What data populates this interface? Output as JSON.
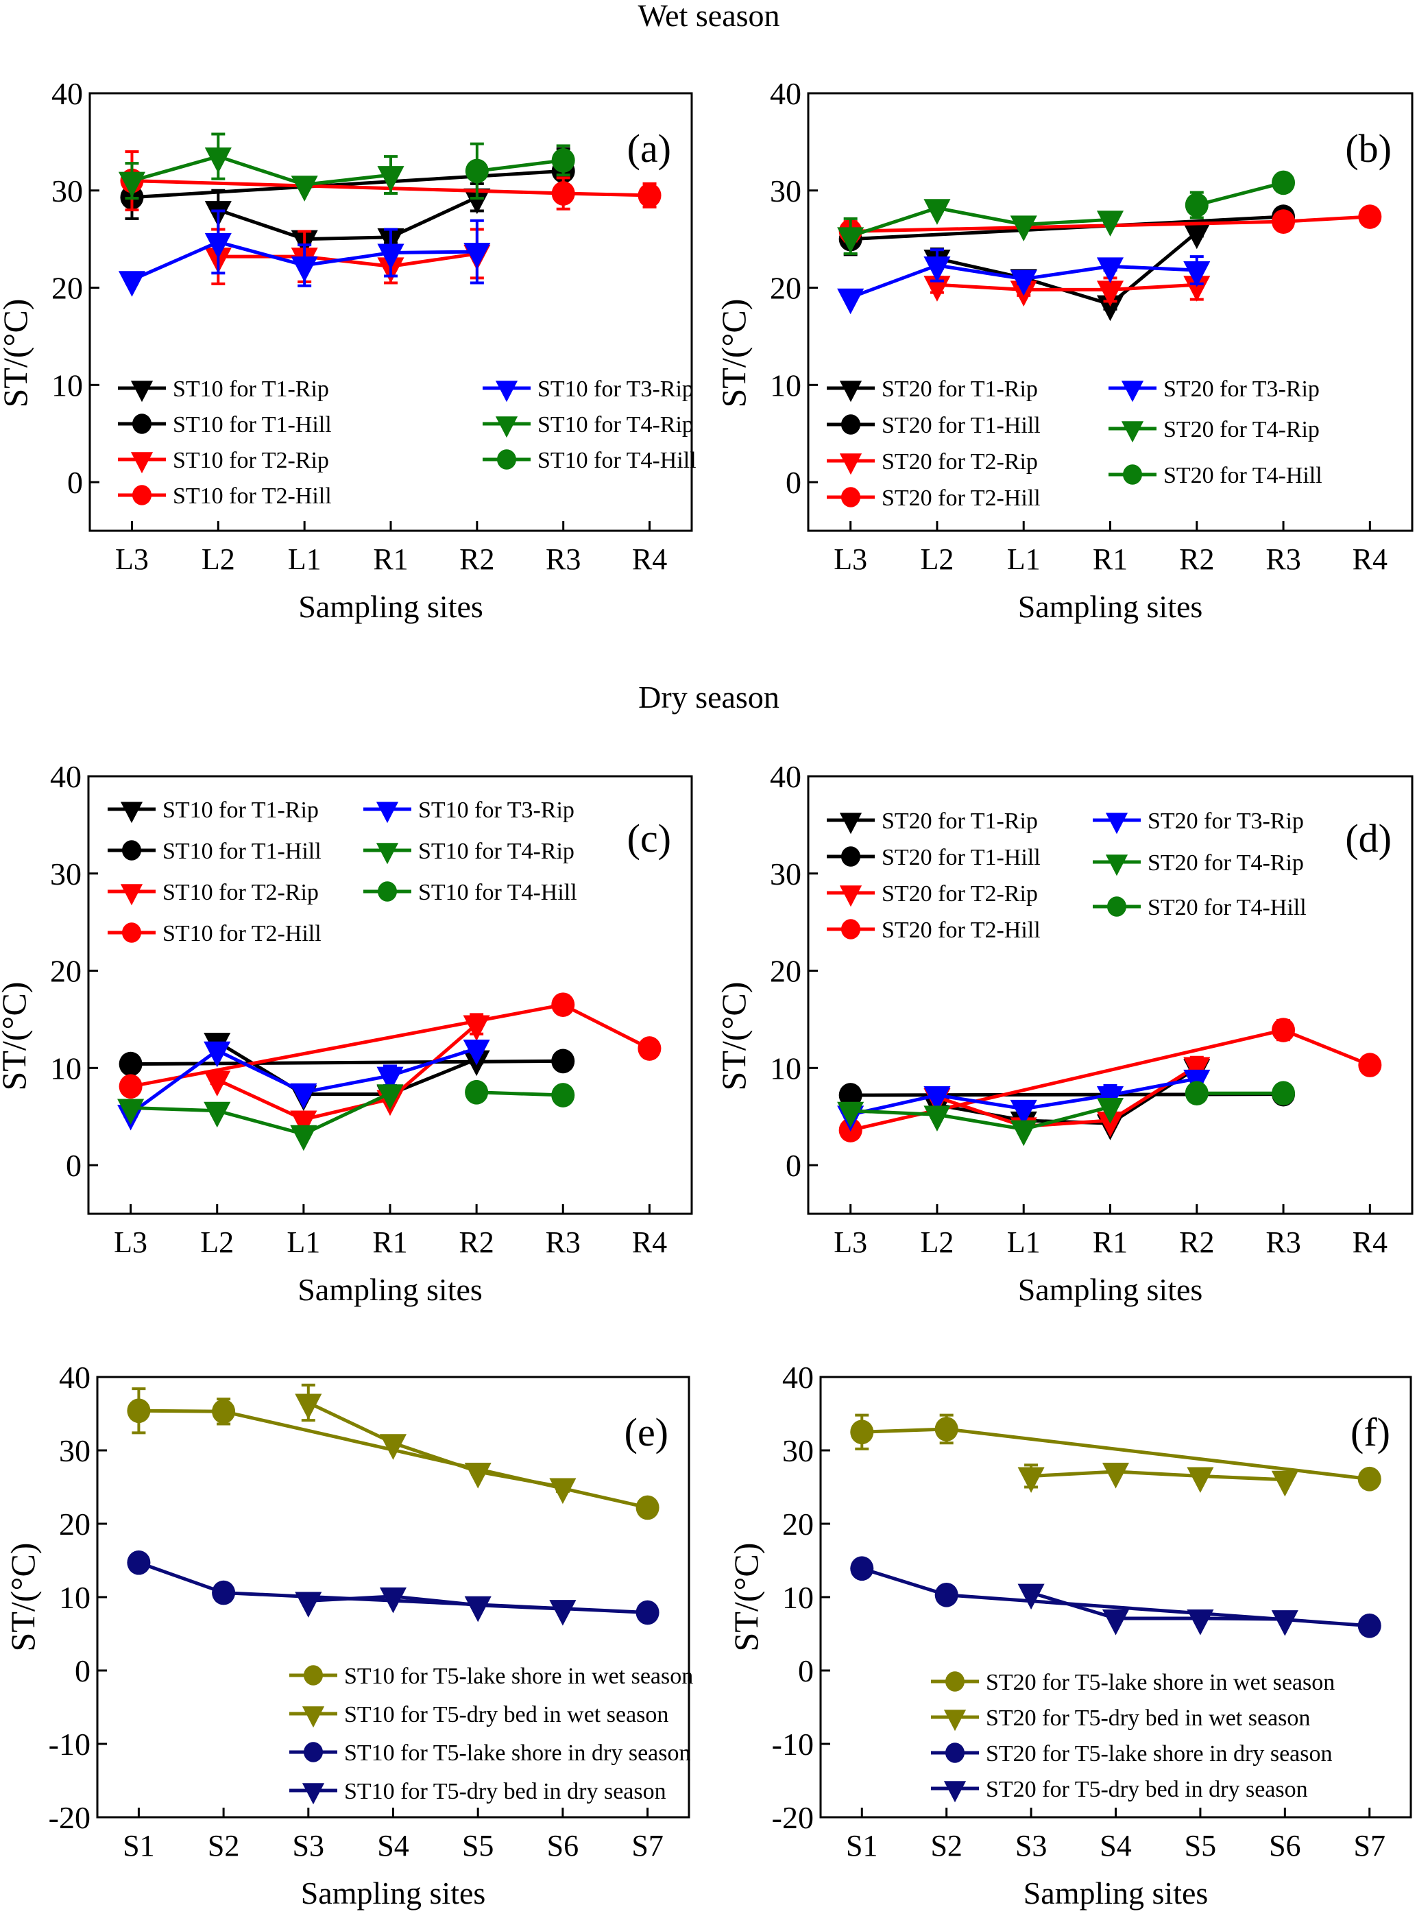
{
  "figure": {
    "section_titles": [
      "Wet season",
      "Dry season"
    ]
  },
  "colors": {
    "black": "#000000",
    "red": "#ff0000",
    "blue": "#0000ff",
    "green": "#0a7d0a",
    "olive": "#808000",
    "navy": "#0a0a78"
  },
  "chart_data": [
    {
      "id": "a",
      "type": "line",
      "panel_label": "(a)",
      "title": "",
      "xlabel": "Sampling sites",
      "ylabel": "ST/(°C)",
      "categories": [
        "L3",
        "L2",
        "L1",
        "R1",
        "R2",
        "R3",
        "R4"
      ],
      "ylim": [
        -5,
        40
      ],
      "yticks": [
        0,
        10,
        20,
        30,
        40
      ],
      "legend_position": "bottom-left",
      "legend_columns": 2,
      "series": [
        {
          "name": "ST10 for T1-Rip",
          "color": "black",
          "marker": "triangle-down",
          "values": [
            null,
            28.0,
            25.0,
            25.2,
            29.3,
            null,
            null
          ],
          "errors": [
            null,
            2.0,
            0.4,
            0.6,
            1.4,
            null,
            null
          ]
        },
        {
          "name": "ST10 for T1-Hill",
          "color": "black",
          "marker": "circle",
          "values": [
            29.3,
            null,
            null,
            null,
            null,
            32.0,
            null
          ],
          "errors": [
            2.2,
            null,
            null,
            null,
            null,
            2.3,
            null
          ]
        },
        {
          "name": "ST10 for T2-Rip",
          "color": "red",
          "marker": "triangle-down",
          "values": [
            null,
            23.2,
            23.2,
            22.2,
            23.5,
            null,
            null
          ],
          "errors": [
            null,
            2.8,
            2.6,
            1.7,
            2.5,
            null,
            null
          ]
        },
        {
          "name": "ST10 for T2-Hill",
          "color": "red",
          "marker": "circle",
          "values": [
            31.0,
            null,
            null,
            null,
            null,
            29.7,
            29.5
          ],
          "errors": [
            3.0,
            null,
            null,
            null,
            null,
            1.6,
            1.2
          ]
        },
        {
          "name": "ST10 for T3-Rip",
          "color": "blue",
          "marker": "triangle-down",
          "values": [
            20.8,
            24.7,
            22.3,
            23.6,
            23.7,
            null,
            null
          ],
          "errors": [
            0.3,
            3.2,
            2.1,
            2.4,
            3.2,
            null,
            null
          ]
        },
        {
          "name": "ST10 for T4-Rip",
          "color": "green",
          "marker": "triangle-down",
          "values": [
            31.0,
            33.5,
            30.6,
            31.6,
            null,
            null,
            null
          ],
          "errors": [
            1.8,
            2.3,
            0.3,
            1.9,
            null,
            null,
            null
          ]
        },
        {
          "name": "ST10 for T4-Hill",
          "color": "green",
          "marker": "circle",
          "values": [
            null,
            null,
            null,
            null,
            32.0,
            33.1,
            null
          ],
          "errors": [
            null,
            null,
            null,
            null,
            2.8,
            1.5,
            null
          ]
        }
      ]
    },
    {
      "id": "b",
      "type": "line",
      "panel_label": "(b)",
      "title": "",
      "xlabel": "Sampling sites",
      "ylabel": "ST/(°C)",
      "categories": [
        "L3",
        "L2",
        "L1",
        "R1",
        "R2",
        "R3",
        "R4"
      ],
      "ylim": [
        -5,
        40
      ],
      "yticks": [
        0,
        10,
        20,
        30,
        40
      ],
      "legend_position": "bottom-left",
      "legend_columns": 2,
      "series": [
        {
          "name": "ST20 for T1-Rip",
          "color": "black",
          "marker": "triangle-down",
          "values": [
            null,
            23.0,
            21.0,
            18.3,
            25.7,
            null,
            null
          ],
          "errors": [
            null,
            1.0,
            0.4,
            0.5,
            0.4,
            null,
            null
          ]
        },
        {
          "name": "ST20 for T1-Hill",
          "color": "black",
          "marker": "circle",
          "values": [
            25.0,
            null,
            null,
            null,
            null,
            27.3,
            null
          ],
          "errors": [
            1.6,
            null,
            null,
            null,
            null,
            0.5,
            null
          ]
        },
        {
          "name": "ST20 for T2-Rip",
          "color": "red",
          "marker": "triangle-down",
          "values": [
            null,
            20.3,
            19.8,
            19.8,
            20.3,
            null,
            null
          ],
          "errors": [
            null,
            0.8,
            0.6,
            1.2,
            1.5,
            null,
            null
          ]
        },
        {
          "name": "ST20 for T2-Hill",
          "color": "red",
          "marker": "circle",
          "values": [
            25.8,
            null,
            null,
            null,
            null,
            26.8,
            27.3
          ],
          "errors": [
            1.0,
            null,
            null,
            null,
            null,
            0.4,
            0.3
          ]
        },
        {
          "name": "ST20 for T3-Rip",
          "color": "blue",
          "marker": "triangle-down",
          "values": [
            19.0,
            22.3,
            20.9,
            22.2,
            21.8,
            null,
            null
          ],
          "errors": [
            0.2,
            1.6,
            0.5,
            0.4,
            1.4,
            null,
            null
          ]
        },
        {
          "name": "ST20 for T4-Rip",
          "color": "green",
          "marker": "triangle-down",
          "values": [
            25.3,
            28.2,
            26.5,
            27.0,
            null,
            null,
            null
          ],
          "errors": [
            1.8,
            0.3,
            0.3,
            0.4,
            null,
            null,
            null
          ]
        },
        {
          "name": "ST20 for T4-Hill",
          "color": "green",
          "marker": "circle",
          "values": [
            null,
            null,
            null,
            null,
            28.5,
            30.8,
            null
          ],
          "errors": [
            null,
            null,
            null,
            null,
            1.3,
            0.9,
            null
          ]
        }
      ]
    },
    {
      "id": "c",
      "type": "line",
      "panel_label": "(c)",
      "title": "",
      "xlabel": "Sampling sites",
      "ylabel": "ST/(°C)",
      "categories": [
        "L3",
        "L2",
        "L1",
        "R1",
        "R2",
        "R3",
        "R4"
      ],
      "ylim": [
        -5,
        40
      ],
      "yticks": [
        0,
        10,
        20,
        30,
        40
      ],
      "legend_position": "top-left",
      "legend_columns": 2,
      "series": [
        {
          "name": "ST10 for T1-Rip",
          "color": "black",
          "marker": "triangle-down",
          "values": [
            null,
            12.7,
            7.3,
            7.3,
            10.9,
            null,
            null
          ],
          "errors": [
            null,
            0.3,
            0.3,
            0.3,
            0.4,
            null,
            null
          ]
        },
        {
          "name": "ST10 for T1-Hill",
          "color": "black",
          "marker": "circle",
          "values": [
            10.4,
            null,
            null,
            null,
            null,
            10.7,
            null
          ],
          "errors": [
            0.3,
            null,
            null,
            null,
            null,
            0.3,
            null
          ]
        },
        {
          "name": "ST10 for T2-Rip",
          "color": "red",
          "marker": "triangle-down",
          "values": [
            null,
            8.8,
            4.7,
            6.8,
            14.5,
            null,
            null
          ],
          "errors": [
            null,
            0.4,
            0.3,
            0.3,
            1.0,
            null,
            null
          ]
        },
        {
          "name": "ST10 for T2-Hill",
          "color": "red",
          "marker": "circle",
          "values": [
            8.1,
            null,
            null,
            null,
            null,
            16.5,
            12.0
          ],
          "errors": [
            0.3,
            null,
            null,
            null,
            null,
            0.4,
            0.3
          ]
        },
        {
          "name": "ST10 for T3-Rip",
          "color": "blue",
          "marker": "triangle-down",
          "values": [
            5.3,
            11.8,
            7.5,
            9.2,
            12.0,
            null,
            null
          ],
          "errors": [
            0.3,
            0.3,
            0.3,
            1.0,
            0.4,
            null,
            null
          ]
        },
        {
          "name": "ST10 for T4-Rip",
          "color": "green",
          "marker": "triangle-down",
          "values": [
            5.9,
            5.6,
            3.2,
            7.4,
            null,
            null,
            null
          ],
          "errors": [
            0.3,
            0.3,
            0.3,
            0.3,
            null,
            null,
            null
          ]
        },
        {
          "name": "ST10 for T4-Hill",
          "color": "green",
          "marker": "circle",
          "values": [
            null,
            null,
            null,
            null,
            7.5,
            7.2,
            null
          ],
          "errors": [
            null,
            null,
            null,
            null,
            0.3,
            0.3,
            null
          ]
        }
      ]
    },
    {
      "id": "d",
      "type": "line",
      "panel_label": "(d)",
      "title": "",
      "xlabel": "Sampling sites",
      "ylabel": "ST/(°C)",
      "categories": [
        "L3",
        "L2",
        "L1",
        "R1",
        "R2",
        "R3",
        "R4"
      ],
      "ylim": [
        -5,
        40
      ],
      "yticks": [
        0,
        10,
        20,
        30,
        40
      ],
      "legend_position": "top-left",
      "legend_columns": 2,
      "series": [
        {
          "name": "ST20 for T1-Rip",
          "color": "black",
          "marker": "triangle-down",
          "values": [
            null,
            6.2,
            4.6,
            4.3,
            10.0,
            null,
            null
          ],
          "errors": [
            null,
            0.3,
            0.3,
            0.3,
            0.3,
            null,
            null
          ]
        },
        {
          "name": "ST20 for T1-Hill",
          "color": "black",
          "marker": "circle",
          "values": [
            7.2,
            null,
            null,
            null,
            null,
            7.3,
            null
          ],
          "errors": [
            0.3,
            null,
            null,
            null,
            null,
            0.3,
            null
          ]
        },
        {
          "name": "ST20 for T2-Rip",
          "color": "red",
          "marker": "triangle-down",
          "values": [
            null,
            7.0,
            4.0,
            4.6,
            10.2,
            null,
            null
          ],
          "errors": [
            null,
            0.3,
            0.3,
            0.3,
            0.9,
            null,
            null
          ]
        },
        {
          "name": "ST20 for T2-Hill",
          "color": "red",
          "marker": "circle",
          "values": [
            3.6,
            null,
            null,
            null,
            null,
            13.9,
            10.3
          ],
          "errors": [
            0.3,
            null,
            null,
            null,
            null,
            1.0,
            0.3
          ]
        },
        {
          "name": "ST20 for T3-Rip",
          "color": "blue",
          "marker": "triangle-down",
          "values": [
            5.2,
            7.2,
            5.8,
            7.2,
            8.9,
            null,
            null
          ],
          "errors": [
            0.3,
            0.3,
            0.3,
            1.0,
            0.3,
            null,
            null
          ]
        },
        {
          "name": "ST20 for T4-Rip",
          "color": "green",
          "marker": "triangle-down",
          "values": [
            5.6,
            5.2,
            3.7,
            6.0,
            null,
            null,
            null
          ],
          "errors": [
            0.3,
            0.3,
            0.3,
            0.3,
            null,
            null,
            null
          ]
        },
        {
          "name": "ST20 for T4-Hill",
          "color": "green",
          "marker": "circle",
          "values": [
            null,
            null,
            null,
            null,
            7.4,
            7.4,
            null
          ],
          "errors": [
            null,
            null,
            null,
            null,
            0.3,
            0.3,
            null
          ]
        }
      ]
    },
    {
      "id": "e",
      "type": "line",
      "panel_label": "(e)",
      "title": "",
      "xlabel": "Sampling sites",
      "ylabel": "ST/(°C)",
      "categories": [
        "S1",
        "S2",
        "S3",
        "S4",
        "S5",
        "S6",
        "S7"
      ],
      "ylim": [
        -20,
        40
      ],
      "yticks": [
        -20,
        -10,
        0,
        10,
        20,
        30,
        40
      ],
      "legend_position": "bottom-right",
      "legend_columns": 1,
      "series": [
        {
          "name": "ST10 for T5-lake shore in wet season",
          "color": "olive",
          "marker": "circle",
          "values": [
            35.4,
            35.3,
            null,
            null,
            null,
            null,
            22.2
          ],
          "errors": [
            3.0,
            1.7,
            null,
            null,
            null,
            null,
            0.3
          ]
        },
        {
          "name": "ST10 for T5-dry bed in wet season",
          "color": "olive",
          "marker": "triangle-down",
          "values": [
            null,
            null,
            36.5,
            31.0,
            27.1,
            25.0,
            null
          ],
          "errors": [
            null,
            null,
            2.4,
            0.4,
            0.4,
            0.6,
            null
          ]
        },
        {
          "name": "ST10 for T5-lake shore in dry season",
          "color": "navy",
          "marker": "circle",
          "values": [
            14.7,
            10.6,
            null,
            null,
            null,
            null,
            7.9
          ],
          "errors": [
            0.4,
            0.3,
            null,
            null,
            null,
            null,
            0.3
          ]
        },
        {
          "name": "ST10 for T5-dry bed in dry season",
          "color": "navy",
          "marker": "triangle-down",
          "values": [
            null,
            null,
            9.5,
            10.1,
            8.9,
            8.4,
            null
          ],
          "errors": [
            null,
            null,
            0.3,
            0.3,
            0.3,
            0.3,
            null
          ]
        }
      ]
    },
    {
      "id": "f",
      "type": "line",
      "panel_label": "(f)",
      "title": "",
      "xlabel": "Sampling sites",
      "ylabel": "ST/(°C)",
      "categories": [
        "S1",
        "S2",
        "S3",
        "S4",
        "S5",
        "S6",
        "S7"
      ],
      "ylim": [
        -20,
        40
      ],
      "yticks": [
        -20,
        -10,
        0,
        10,
        20,
        30,
        40
      ],
      "legend_position": "bottom-right",
      "legend_columns": 1,
      "series": [
        {
          "name": "ST20 for T5-lake shore in wet season",
          "color": "olive",
          "marker": "circle",
          "values": [
            32.5,
            32.9,
            null,
            null,
            null,
            null,
            26.1
          ],
          "errors": [
            2.3,
            1.9,
            null,
            null,
            null,
            null,
            0.3
          ]
        },
        {
          "name": "ST20 for T5-dry bed in wet season",
          "color": "olive",
          "marker": "triangle-down",
          "values": [
            null,
            null,
            26.5,
            27.1,
            26.5,
            26.0,
            null
          ],
          "errors": [
            null,
            null,
            1.5,
            0.3,
            0.3,
            0.3,
            null
          ]
        },
        {
          "name": "ST20 for T5-lake shore in dry season",
          "color": "navy",
          "marker": "circle",
          "values": [
            13.9,
            10.3,
            null,
            null,
            null,
            null,
            6.1
          ],
          "errors": [
            0.3,
            0.3,
            null,
            null,
            null,
            null,
            0.3
          ]
        },
        {
          "name": "ST20 for T5-dry bed in dry season",
          "color": "navy",
          "marker": "triangle-down",
          "values": [
            null,
            null,
            10.6,
            7.1,
            7.1,
            7.0,
            null
          ],
          "errors": [
            null,
            null,
            0.3,
            0.3,
            0.3,
            0.3,
            null
          ]
        }
      ]
    }
  ]
}
